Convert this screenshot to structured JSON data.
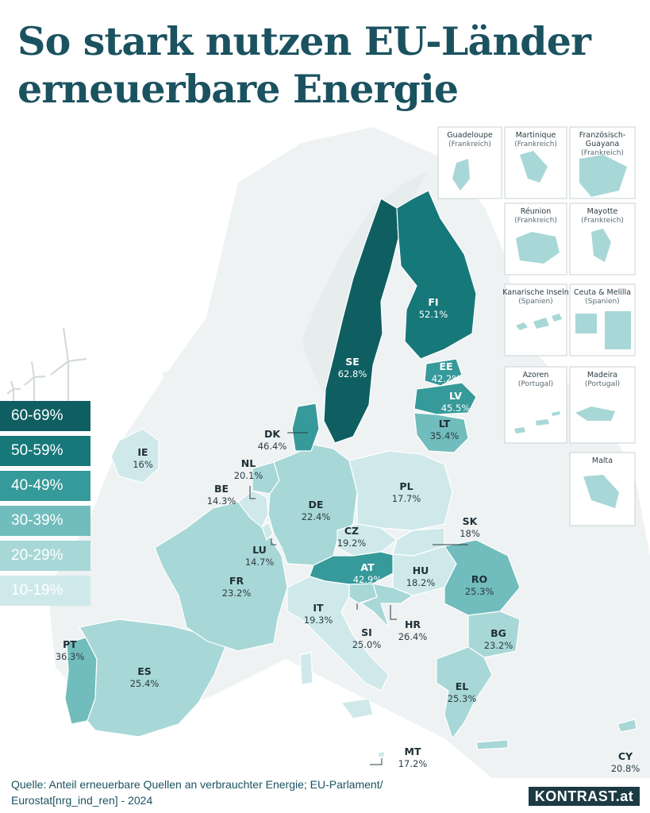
{
  "title_line1": "So stark nutzen EU-Länder",
  "title_line2": "erneuerbare Energie",
  "legend": [
    {
      "label": "60-69%",
      "color": "#0f5f62"
    },
    {
      "label": "50-59%",
      "color": "#17787a"
    },
    {
      "label": "40-49%",
      "color": "#36999a"
    },
    {
      "label": "30-39%",
      "color": "#71bcbc"
    },
    {
      "label": "20-29%",
      "color": "#a8d7d7"
    },
    {
      "label": "10-19%",
      "color": "#cfe9ea"
    }
  ],
  "countries": [
    {
      "code": "SE",
      "value": "62.8%"
    },
    {
      "code": "FI",
      "value": "52.1%"
    },
    {
      "code": "EE",
      "value": "42.2%"
    },
    {
      "code": "LV",
      "value": "45.5%"
    },
    {
      "code": "LT",
      "value": "35.4%"
    },
    {
      "code": "DK",
      "value": "46.4%"
    },
    {
      "code": "IE",
      "value": "16%"
    },
    {
      "code": "NL",
      "value": "20.1%"
    },
    {
      "code": "BE",
      "value": "14.3%"
    },
    {
      "code": "PL",
      "value": "17.7%"
    },
    {
      "code": "DE",
      "value": "22.4%"
    },
    {
      "code": "SK",
      "value": "18%"
    },
    {
      "code": "CZ",
      "value": "19.2%"
    },
    {
      "code": "LU",
      "value": "14.7%"
    },
    {
      "code": "AT",
      "value": "42.9%"
    },
    {
      "code": "HU",
      "value": "18.2%"
    },
    {
      "code": "RO",
      "value": "25.3%"
    },
    {
      "code": "FR",
      "value": "23.2%"
    },
    {
      "code": "IT",
      "value": "19.3%"
    },
    {
      "code": "SI",
      "value": "25.0%"
    },
    {
      "code": "HR",
      "value": "26.4%"
    },
    {
      "code": "BG",
      "value": "23.2%"
    },
    {
      "code": "PT",
      "value": "36.3%"
    },
    {
      "code": "ES",
      "value": "25.4%"
    },
    {
      "code": "EL",
      "value": "25.3%"
    },
    {
      "code": "MT",
      "value": "17.2%"
    },
    {
      "code": "CY",
      "value": "20.8%"
    }
  ],
  "insets": [
    {
      "name": "Guadeloupe",
      "sub": "(Frankreich)"
    },
    {
      "name": "Martinique",
      "sub": "(Frankreich)"
    },
    {
      "name": "Französisch-",
      "name2": "Guayana",
      "sub": "(Frankreich)"
    },
    {
      "name": "Réunion",
      "sub": "(Frankreich)"
    },
    {
      "name": "Mayotte",
      "sub": "(Frankreich)"
    },
    {
      "name": "Kanarische Inseln",
      "sub": "(Spanien)"
    },
    {
      "name": "Ceuta & Melilla",
      "sub": "(Spanien)"
    },
    {
      "name": "Azoren",
      "sub": "(Portugal)"
    },
    {
      "name": "Madeira",
      "sub": "(Portugal)"
    },
    {
      "name": "Malta",
      "sub": ""
    }
  ],
  "source_line1": "Quelle:  Anteil erneuerbare Quellen an verbrauchter Energie; EU-Parlament/",
  "source_line2": "Eurostat[nrg_ind_ren] - 2024",
  "brand": "KONTRAST.at"
}
